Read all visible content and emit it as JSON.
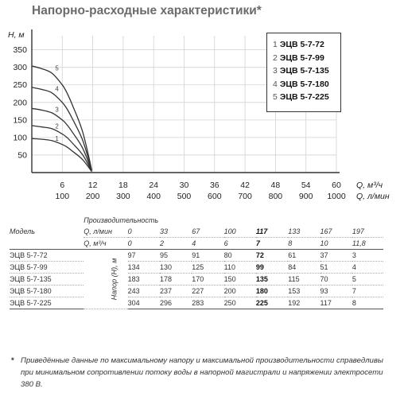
{
  "title": "Напорно-расходные характеристики*",
  "chart_data": {
    "type": "line",
    "ylabel": "H, м",
    "xlabel_primary": "Q, м³/ч",
    "xlabel_secondary": "Q, л/мин",
    "y_ticks": [
      50,
      100,
      150,
      200,
      250,
      300,
      350
    ],
    "ylim": [
      0,
      390
    ],
    "xlim": [
      0,
      60
    ],
    "x_ticks_m3h": [
      6,
      12,
      18,
      24,
      30,
      36,
      42,
      48,
      54,
      60
    ],
    "x_ticks_lmin": [
      100,
      200,
      300,
      400,
      500,
      600,
      700,
      800,
      900,
      1000
    ],
    "grid": true,
    "series": [
      {
        "name": "ЭЦВ 5-7-72",
        "label": "1",
        "x": [
          0,
          2,
          4,
          6,
          7,
          8,
          10,
          11.8
        ],
        "y": [
          97,
          95,
          91,
          80,
          72,
          61,
          37,
          3
        ]
      },
      {
        "name": "ЭЦВ 5-7-99",
        "label": "2",
        "x": [
          0,
          2,
          4,
          6,
          7,
          8,
          10,
          11.8
        ],
        "y": [
          134,
          130,
          125,
          110,
          99,
          84,
          51,
          4
        ]
      },
      {
        "name": "ЭЦВ 5-7-135",
        "label": "3",
        "x": [
          0,
          2,
          4,
          6,
          7,
          8,
          10,
          11.8
        ],
        "y": [
          183,
          178,
          170,
          150,
          135,
          115,
          70,
          5
        ]
      },
      {
        "name": "ЭЦВ 5-7-180",
        "label": "4",
        "x": [
          0,
          2,
          4,
          6,
          7,
          8,
          10,
          11.8
        ],
        "y": [
          243,
          237,
          227,
          200,
          180,
          153,
          93,
          7
        ]
      },
      {
        "name": "ЭЦВ 5-7-225",
        "label": "5",
        "x": [
          0,
          2,
          4,
          6,
          7,
          8,
          10,
          11.8
        ],
        "y": [
          304,
          296,
          283,
          250,
          225,
          192,
          117,
          8
        ]
      }
    ]
  },
  "legend": [
    {
      "num": "1",
      "label": "ЭЦВ 5-7-72"
    },
    {
      "num": "2",
      "label": "ЭЦВ 5-7-99"
    },
    {
      "num": "3",
      "label": "ЭЦВ 5-7-135"
    },
    {
      "num": "4",
      "label": "ЭЦВ 5-7-180"
    },
    {
      "num": "5",
      "label": "ЭЦВ 5-7-225"
    }
  ],
  "table": {
    "header_productivity": "Производительность",
    "header_model": "Модель",
    "unit_lmin": "Q, л/мин",
    "unit_m3h": "Q, м³/ч",
    "head_label": "Напор (H), м",
    "q_lmin": [
      "0",
      "33",
      "67",
      "100",
      "117",
      "133",
      "167",
      "197"
    ],
    "q_m3h": [
      "0",
      "2",
      "4",
      "6",
      "7",
      "8",
      "10",
      "11,8"
    ],
    "bold_col": 4,
    "rows": [
      {
        "model": "ЭЦВ 5-7-72",
        "values": [
          "97",
          "95",
          "91",
          "80",
          "72",
          "61",
          "37",
          "3"
        ]
      },
      {
        "model": "ЭЦВ 5-7-99",
        "values": [
          "134",
          "130",
          "125",
          "110",
          "99",
          "84",
          "51",
          "4"
        ]
      },
      {
        "model": "ЭЦВ 5-7-135",
        "values": [
          "183",
          "178",
          "170",
          "150",
          "135",
          "115",
          "70",
          "5"
        ]
      },
      {
        "model": "ЭЦВ 5-7-180",
        "values": [
          "243",
          "237",
          "227",
          "200",
          "180",
          "153",
          "93",
          "7"
        ]
      },
      {
        "model": "ЭЦВ 5-7-225",
        "values": [
          "304",
          "296",
          "283",
          "250",
          "225",
          "192",
          "117",
          "8"
        ]
      }
    ]
  },
  "footnote": {
    "star": "*",
    "text": "Приведённые данные по максимальному напору и максимальной производительности справедливы при минимальном сопротивлении потоку воды в напорной магистрали и напряжении электросети 380 В."
  }
}
